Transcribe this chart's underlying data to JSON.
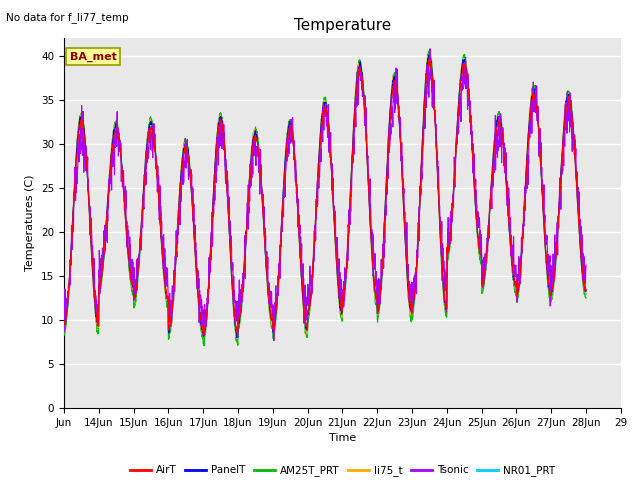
{
  "title": "Temperature",
  "xlabel": "Time",
  "ylabel": "Temperatures (C)",
  "ylim": [
    0,
    42
  ],
  "yticks": [
    0,
    5,
    10,
    15,
    20,
    25,
    30,
    35,
    40
  ],
  "annotation_text": "No data for f_li77_temp",
  "legend_text": "BA_met",
  "series": [
    "AirT",
    "PanelT",
    "AM25T_PRT",
    "li75_t",
    "Tsonic",
    "NR01_PRT"
  ],
  "colors": {
    "AirT": "#ff0000",
    "PanelT": "#0000ff",
    "AM25T_PRT": "#00bb00",
    "li75_t": "#ffaa00",
    "Tsonic": "#aa00ff",
    "NR01_PRT": "#00ccff"
  },
  "background_color": "#e8e8e8",
  "x_tick_labels": [
    "Jun",
    "14Jun",
    "15Jun",
    "16Jun",
    "17Jun",
    "18Jun",
    "19Jun",
    "20Jun",
    "21Jun",
    "22Jun",
    "23Jun",
    "24Jun",
    "25Jun",
    "26Jun",
    "27Jun",
    "28Jun",
    "29"
  ],
  "day_peaks": [
    32.5,
    31.5,
    31.8,
    29.5,
    32.5,
    30.8,
    31.8,
    34.2,
    38.5,
    37.0,
    39.5,
    39.0,
    32.5,
    35.5,
    35.0
  ],
  "day_mins": [
    9.0,
    13.5,
    12.0,
    8.5,
    7.8,
    9.5,
    8.5,
    10.5,
    12.0,
    10.5,
    11.0,
    17.0,
    13.5,
    12.5,
    13.0
  ]
}
